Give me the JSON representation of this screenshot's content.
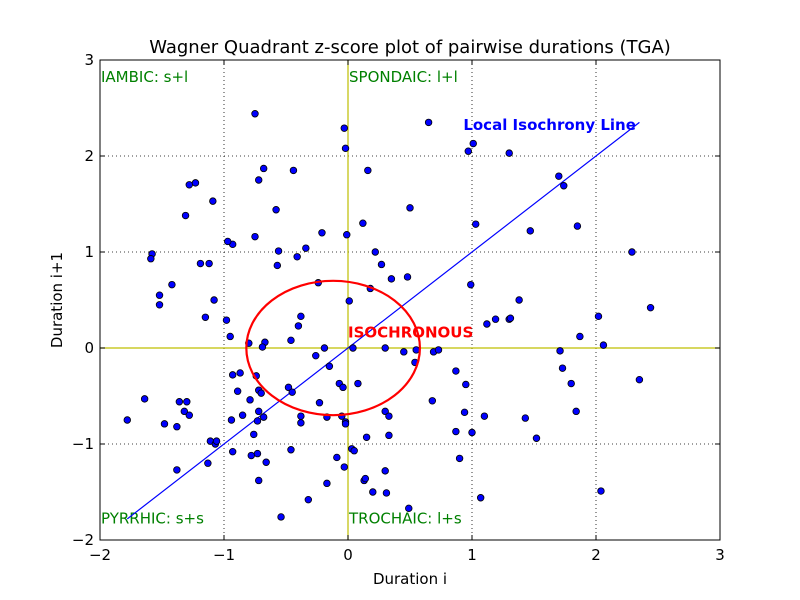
{
  "chart_data": {
    "type": "scatter",
    "title": "Wagner Quadrant z-score plot of pairwise durations (TGA)",
    "xlabel": "Duration i",
    "ylabel": "Duration i+1",
    "xlim": [
      -2,
      3
    ],
    "ylim": [
      -2,
      3
    ],
    "xticks": [
      -2,
      -1,
      0,
      1,
      2,
      3
    ],
    "yticks": [
      -2,
      -1,
      0,
      1,
      2,
      3
    ],
    "xtick_labels": [
      "−2",
      "−1",
      "0",
      "1",
      "2",
      "3"
    ],
    "ytick_labels": [
      "−2",
      "−1",
      "0",
      "1",
      "2",
      "3"
    ],
    "grid": true,
    "colors": {
      "points": "#0000ff",
      "point_edge": "#000000",
      "line": "#0000ff",
      "ellipse": "#ff0000",
      "quadrant_text": "#008000",
      "zero_lines": "#bfbf00"
    },
    "quadrant_labels": [
      {
        "text": "IAMBIC: s+l",
        "x": -2,
        "y": 2.77
      },
      {
        "text": "SPONDAIC: l+l",
        "x": 0,
        "y": 2.77
      },
      {
        "text": "PYRRHIC: s+s",
        "x": -2,
        "y": -1.83
      },
      {
        "text": "TROCHAIC: l+s",
        "x": 0,
        "y": -1.83
      }
    ],
    "isochrony_line": {
      "label": "Local Isochrony Line",
      "x": [
        -1.78,
        2.35
      ],
      "y": [
        -1.78,
        2.35
      ],
      "label_x": 0.93,
      "label_y": 2.27
    },
    "isochronous_region": {
      "label": "ISOCHRONOUS",
      "cx": -0.12,
      "cy": 0,
      "rx": 0.7,
      "ry": 0.7,
      "label_x": 0,
      "label_y": 0.12
    },
    "points": [
      [
        -0.75,
        2.44
      ],
      [
        0.65,
        2.35
      ],
      [
        -0.03,
        2.29
      ],
      [
        -0.02,
        2.08
      ],
      [
        0.97,
        2.05
      ],
      [
        1.01,
        2.13
      ],
      [
        1.3,
        2.03
      ],
      [
        -0.68,
        1.87
      ],
      [
        -0.44,
        1.85
      ],
      [
        0.16,
        1.85
      ],
      [
        -1.28,
        1.7
      ],
      [
        -1.23,
        1.72
      ],
      [
        -1.09,
        1.53
      ],
      [
        -0.72,
        1.75
      ],
      [
        1.7,
        1.79
      ],
      [
        1.74,
        1.69
      ],
      [
        -1.31,
        1.38
      ],
      [
        -0.58,
        1.44
      ],
      [
        0.5,
        1.46
      ],
      [
        0.12,
        1.3
      ],
      [
        1.03,
        1.29
      ],
      [
        1.85,
        1.27
      ],
      [
        1.47,
        1.22
      ],
      [
        -0.93,
        1.08
      ],
      [
        -0.97,
        1.11
      ],
      [
        -0.75,
        1.16
      ],
      [
        -0.21,
        1.2
      ],
      [
        -0.01,
        1.18
      ],
      [
        -1.58,
        0.98
      ],
      [
        -1.59,
        0.93
      ],
      [
        -0.56,
        1.01
      ],
      [
        -0.41,
        0.95
      ],
      [
        -0.34,
        1.04
      ],
      [
        0.22,
        1.0
      ],
      [
        -1.19,
        0.88
      ],
      [
        -1.12,
        0.88
      ],
      [
        -0.57,
        0.86
      ],
      [
        0.27,
        0.87
      ],
      [
        0.35,
        0.72
      ],
      [
        0.48,
        0.74
      ],
      [
        -1.42,
        0.66
      ],
      [
        -0.24,
        0.68
      ],
      [
        0.18,
        0.62
      ],
      [
        -1.52,
        0.55
      ],
      [
        -1.52,
        0.45
      ],
      [
        -1.08,
        0.5
      ],
      [
        0.99,
        0.66
      ],
      [
        1.38,
        0.5
      ],
      [
        2.29,
        1.0
      ],
      [
        2.44,
        0.42
      ],
      [
        -1.15,
        0.32
      ],
      [
        -0.98,
        0.29
      ],
      [
        -0.38,
        0.33
      ],
      [
        0.01,
        0.49
      ],
      [
        1.12,
        0.25
      ],
      [
        1.19,
        0.3
      ],
      [
        1.3,
        0.3
      ],
      [
        1.31,
        0.31
      ],
      [
        1.87,
        0.12
      ],
      [
        2.02,
        0.33
      ],
      [
        -0.95,
        0.12
      ],
      [
        -0.4,
        0.23
      ],
      [
        -0.46,
        0.08
      ],
      [
        -0.8,
        0.05
      ],
      [
        -0.67,
        0.06
      ],
      [
        -0.69,
        0.01
      ],
      [
        -0.26,
        -0.08
      ],
      [
        -0.19,
        0.0
      ],
      [
        0.04,
        0.0
      ],
      [
        0.3,
        0.0
      ],
      [
        0.45,
        -0.04
      ],
      [
        0.55,
        -0.02
      ],
      [
        0.54,
        -0.15
      ],
      [
        0.69,
        -0.04
      ],
      [
        0.73,
        -0.02
      ],
      [
        1.71,
        -0.03
      ],
      [
        2.06,
        0.03
      ],
      [
        1.73,
        -0.21
      ],
      [
        1.8,
        -0.37
      ],
      [
        2.35,
        -0.33
      ],
      [
        -0.93,
        -0.28
      ],
      [
        -0.87,
        -0.26
      ],
      [
        -0.89,
        -0.45
      ],
      [
        -0.74,
        -0.29
      ],
      [
        -0.72,
        -0.44
      ],
      [
        -0.79,
        -0.54
      ],
      [
        -0.7,
        -0.47
      ],
      [
        -0.48,
        -0.41
      ],
      [
        -0.45,
        -0.46
      ],
      [
        -0.15,
        -0.19
      ],
      [
        -0.07,
        -0.37
      ],
      [
        -0.04,
        -0.41
      ],
      [
        0.08,
        -0.37
      ],
      [
        0.87,
        -0.24
      ],
      [
        0.95,
        -0.38
      ],
      [
        0.68,
        -0.55
      ],
      [
        -1.64,
        -0.53
      ],
      [
        -1.36,
        -0.56
      ],
      [
        -1.3,
        -0.56
      ],
      [
        -1.32,
        -0.66
      ],
      [
        -1.28,
        -0.7
      ],
      [
        -1.78,
        -0.75
      ],
      [
        -1.48,
        -0.79
      ],
      [
        -1.38,
        -0.82
      ],
      [
        -0.94,
        -0.75
      ],
      [
        -0.85,
        -0.7
      ],
      [
        -0.72,
        -0.66
      ],
      [
        -0.73,
        -0.76
      ],
      [
        -0.68,
        -0.72
      ],
      [
        -0.38,
        -0.71
      ],
      [
        -0.38,
        -0.78
      ],
      [
        -0.23,
        -0.57
      ],
      [
        -0.17,
        -0.72
      ],
      [
        -0.05,
        -0.71
      ],
      [
        -0.02,
        -0.77
      ],
      [
        -0.02,
        -0.79
      ],
      [
        0.3,
        -0.66
      ],
      [
        0.33,
        -0.71
      ],
      [
        0.94,
        -0.67
      ],
      [
        1.1,
        -0.71
      ],
      [
        1.43,
        -0.73
      ],
      [
        1.84,
        -0.66
      ],
      [
        -1.11,
        -0.97
      ],
      [
        -1.07,
        -1.0
      ],
      [
        -1.06,
        -0.97
      ],
      [
        -0.76,
        -0.9
      ],
      [
        -0.93,
        -1.08
      ],
      [
        -0.78,
        -1.12
      ],
      [
        -0.73,
        -1.1
      ],
      [
        -0.66,
        -1.19
      ],
      [
        -0.46,
        -1.06
      ],
      [
        0.03,
        -1.05
      ],
      [
        0.05,
        -1.07
      ],
      [
        0.15,
        -0.93
      ],
      [
        0.33,
        -0.91
      ],
      [
        0.87,
        -0.87
      ],
      [
        1.0,
        -0.88
      ],
      [
        1.52,
        -0.94
      ],
      [
        -1.38,
        -1.27
      ],
      [
        -1.13,
        -1.2
      ],
      [
        -0.72,
        -1.38
      ],
      [
        -0.09,
        -1.14
      ],
      [
        -0.03,
        -1.24
      ],
      [
        -0.17,
        -1.41
      ],
      [
        -0.32,
        -1.58
      ],
      [
        0.13,
        -1.38
      ],
      [
        0.14,
        -1.36
      ],
      [
        0.3,
        -1.28
      ],
      [
        0.2,
        -1.5
      ],
      [
        0.31,
        -1.51
      ],
      [
        0.9,
        -1.15
      ],
      [
        1.07,
        -1.56
      ],
      [
        2.04,
        -1.49
      ],
      [
        0.49,
        -1.67
      ],
      [
        -0.54,
        -1.76
      ]
    ]
  }
}
